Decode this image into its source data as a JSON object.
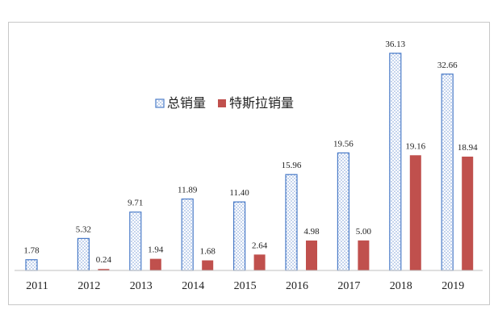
{
  "chart_data": {
    "type": "bar",
    "categories": [
      "2011",
      "2012",
      "2013",
      "2014",
      "2015",
      "2016",
      "2017",
      "2018",
      "2019"
    ],
    "series": [
      {
        "name": "总销量",
        "values": [
          1.78,
          5.32,
          9.71,
          11.89,
          11.4,
          15.96,
          19.56,
          36.13,
          32.66
        ],
        "labels": [
          "1.78",
          "5.32",
          "9.71",
          "11.89",
          "11.40",
          "15.96",
          "19.56",
          "36.13",
          "32.66"
        ],
        "color": "#4a7bc8",
        "pattern": "dotted"
      },
      {
        "name": "特斯拉销量",
        "values": [
          null,
          0.24,
          1.94,
          1.68,
          2.64,
          4.98,
          5.0,
          19.16,
          18.94
        ],
        "labels": [
          null,
          "0.24",
          "1.94",
          "1.68",
          "2.64",
          "4.98",
          "5.00",
          "19.16",
          "18.94"
        ],
        "color": "#c0504d",
        "pattern": "solid"
      }
    ],
    "ylim": [
      0,
      40
    ],
    "grid": false,
    "legend_position": "center-left"
  }
}
